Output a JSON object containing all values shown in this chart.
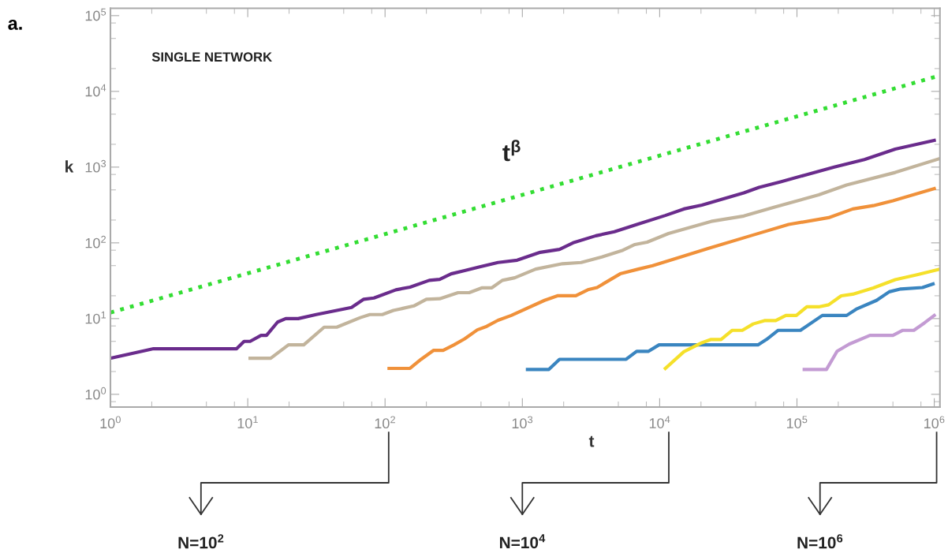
{
  "chart_data": {
    "type": "line",
    "xlabel": "t",
    "ylabel": "k",
    "log": "xy",
    "grid": false,
    "marker": "none",
    "xlim": [
      1,
      1100000
    ],
    "ylim": [
      0.68,
      125000
    ],
    "xticks": [
      {
        "value": 1,
        "label": "10$^{0}$"
      },
      {
        "value": 10,
        "label": "10$^{1}$"
      },
      {
        "value": 100,
        "label": "10$^{2}$"
      },
      {
        "value": 1000,
        "label": "10$^{3}$"
      },
      {
        "value": 10000,
        "label": "10$^{4}$"
      },
      {
        "value": 100000,
        "label": "10$^{5}$"
      },
      {
        "value": 1000000,
        "label": "10$^{6}$"
      }
    ],
    "yticks": [
      {
        "value": 1,
        "label": "10$^{0}$"
      },
      {
        "value": 10,
        "label": "10$^{1}$"
      },
      {
        "value": 100,
        "label": "10$^{2}$"
      },
      {
        "value": 1000,
        "label": "10$^{3}$"
      },
      {
        "value": 10000,
        "label": "10$^{4}$"
      },
      {
        "value": 100000,
        "label": "10$^{5}$"
      }
    ],
    "series": [
      {
        "color": "#33dd33",
        "line_style": "dotted",
        "x": [
          1,
          1100000
        ],
        "values": [
          12,
          16200
        ]
      },
      {
        "color": "#6a2c8c",
        "line_style": "solid",
        "x": [
          1,
          2.06,
          8.3,
          9.4,
          10.4,
          12.5,
          13.7,
          16.5,
          18.9,
          23.3,
          31.5,
          57,
          70,
          83,
          120,
          152,
          210,
          250,
          303,
          380,
          483,
          665,
          917,
          1350,
          1865,
          2340,
          3430,
          4680,
          6980,
          11000,
          15000,
          20300,
          41000,
          53000,
          76000,
          113000,
          187000,
          310000,
          520000,
          1000000
        ],
        "values": [
          3,
          4,
          4,
          5,
          5,
          6,
          6,
          9,
          10,
          10,
          11.3,
          14,
          18,
          18.7,
          24,
          26,
          32,
          33,
          39,
          43,
          48,
          55,
          59,
          75,
          82,
          100,
          124,
          140,
          177,
          230,
          280,
          315,
          457,
          540,
          640,
          780,
          1000,
          1260,
          1730,
          2250
        ]
      },
      {
        "color": "#c2b49c",
        "line_style": "solid",
        "x": [
          10.4,
          14.7,
          19.8,
          25.6,
          36,
          44.5,
          66,
          77.5,
          95.5,
          115,
          162,
          200,
          250,
          340,
          410,
          510,
          600,
          715,
          880,
          1250,
          1960,
          2680,
          3790,
          5400,
          6600,
          8100,
          11600,
          23700,
          41000,
          68000,
          144000,
          230000,
          520000,
          1100000
        ],
        "values": [
          3,
          3,
          4.5,
          4.5,
          7.7,
          7.7,
          10.3,
          11.3,
          11.3,
          12.8,
          14.7,
          18,
          18.3,
          22,
          22,
          25.5,
          25.5,
          32,
          34.6,
          45,
          53,
          55,
          65,
          80,
          95,
          102,
          133,
          192,
          226,
          295,
          430,
          580,
          850,
          1300
        ]
      },
      {
        "color": "#f0913a",
        "line_style": "solid",
        "x": [
          107,
          152,
          183,
          225,
          265,
          318,
          380,
          470,
          550,
          665,
          830,
          1450,
          1800,
          2450,
          3000,
          3500,
          5160,
          7000,
          8900,
          13500,
          22500,
          48000,
          87000,
          170000,
          255000,
          360000,
          500000,
          1000000
        ],
        "values": [
          2.2,
          2.2,
          2.9,
          3.8,
          3.8,
          4.5,
          5.4,
          7.1,
          7.9,
          9.5,
          11,
          17.4,
          20,
          20,
          24,
          25.7,
          39,
          45,
          50,
          63,
          84,
          127,
          175,
          215,
          280,
          310,
          360,
          520
        ]
      },
      {
        "color": "#3a85c0",
        "line_style": "solid",
        "x": [
          1090,
          1560,
          1865,
          5700,
          6800,
          8300,
          9900,
          52000,
          60000,
          73000,
          106000,
          153000,
          230000,
          270000,
          380000,
          470000,
          570000,
          820000,
          980000
        ],
        "values": [
          2.13,
          2.13,
          2.9,
          2.9,
          3.7,
          3.7,
          4.5,
          4.5,
          5.3,
          7,
          7,
          11,
          11,
          13.3,
          17.4,
          22.6,
          24.6,
          25.7,
          28.7
        ]
      },
      {
        "color": "#f5e02a",
        "line_style": "solid",
        "x": [
          11000,
          15000,
          20300,
          23700,
          28000,
          33800,
          40000,
          48000,
          58000,
          70000,
          83000,
          99000,
          118000,
          144000,
          170000,
          210000,
          255000,
          360000,
          520000,
          750000,
          1100000
        ],
        "values": [
          2.2,
          3.65,
          4.8,
          5.3,
          5.3,
          7,
          7,
          8.5,
          9.4,
          9.4,
          11,
          11,
          14.3,
          14.3,
          15.2,
          20,
          21,
          25.4,
          32.6,
          38,
          45
        ]
      },
      {
        "color": "#c39bd3",
        "line_style": "solid",
        "x": [
          113000,
          164000,
          196000,
          240000,
          340000,
          500000,
          590000,
          710000,
          850000,
          1000000
        ],
        "values": [
          2.13,
          2.13,
          3.7,
          4.6,
          6,
          6,
          7,
          7,
          8.8,
          11
        ]
      }
    ],
    "annotations": [
      "a.",
      "SINGLE NETWORK",
      "t$^{β}$",
      "N=10$^{2}$",
      "N=10$^{4}$",
      "N=10$^{6}$"
    ]
  }
}
